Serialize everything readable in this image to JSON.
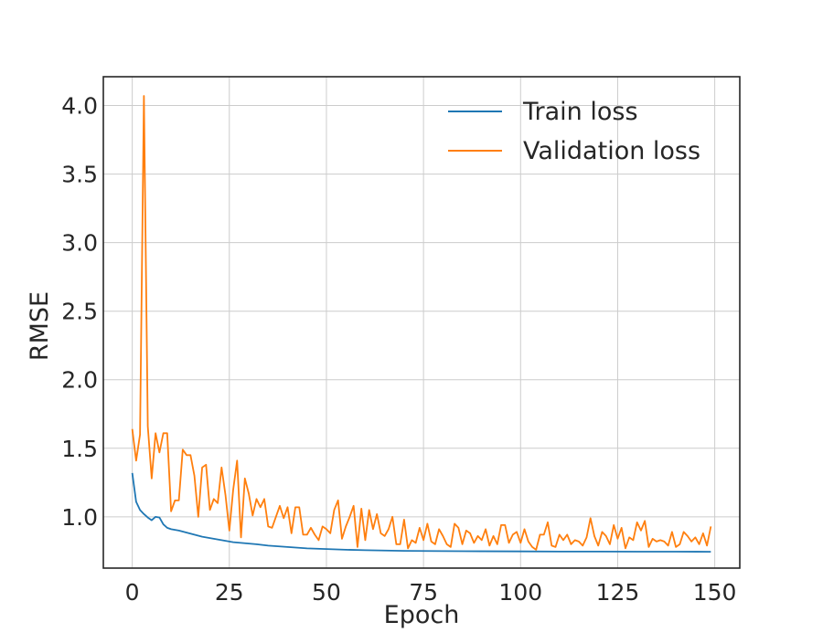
{
  "chart_data": {
    "type": "line",
    "title": "",
    "xlabel": "Epoch",
    "ylabel": "RMSE",
    "xlim": [
      -7.45,
      156.45
    ],
    "ylim": [
      0.626,
      4.21
    ],
    "xticks": [
      0,
      25,
      50,
      75,
      100,
      125,
      150
    ],
    "yticks": [
      1.0,
      1.5,
      2.0,
      2.5,
      3.0,
      3.5,
      4.0
    ],
    "xtick_labels": [
      "0",
      "25",
      "50",
      "75",
      "100",
      "125",
      "150"
    ],
    "ytick_labels": [
      "1.0",
      "1.5",
      "2.0",
      "2.5",
      "3.0",
      "3.5",
      "4.0"
    ],
    "grid": true,
    "legend_position": "top-right",
    "series": [
      {
        "name": "Train loss",
        "color": "#1f77b4",
        "x": [
          0,
          1,
          2,
          3,
          4,
          5,
          6,
          7,
          8,
          9,
          10,
          12,
          14,
          16,
          18,
          20,
          22,
          24,
          26,
          28,
          30,
          32,
          35,
          40,
          45,
          50,
          55,
          60,
          70,
          80,
          90,
          100,
          110,
          120,
          130,
          140,
          149
        ],
        "y": [
          1.32,
          1.11,
          1.05,
          1.02,
          0.995,
          0.975,
          1.0,
          0.995,
          0.945,
          0.92,
          0.91,
          0.9,
          0.885,
          0.87,
          0.855,
          0.845,
          0.835,
          0.825,
          0.815,
          0.81,
          0.805,
          0.8,
          0.79,
          0.78,
          0.77,
          0.765,
          0.76,
          0.757,
          0.752,
          0.75,
          0.749,
          0.748,
          0.747,
          0.747,
          0.746,
          0.746,
          0.745
        ]
      },
      {
        "name": "Validation loss",
        "color": "#ff7f0e",
        "x": [
          0,
          1,
          2,
          3,
          4,
          5,
          6,
          7,
          8,
          9,
          10,
          11,
          12,
          13,
          14,
          15,
          16,
          17,
          18,
          19,
          20,
          21,
          22,
          23,
          24,
          25,
          26,
          27,
          28,
          29,
          30,
          31,
          32,
          33,
          34,
          35,
          36,
          37,
          38,
          39,
          40,
          41,
          42,
          43,
          44,
          45,
          46,
          47,
          48,
          49,
          50,
          51,
          52,
          53,
          54,
          55,
          56,
          57,
          58,
          59,
          60,
          61,
          62,
          63,
          64,
          65,
          66,
          67,
          68,
          69,
          70,
          71,
          72,
          73,
          74,
          75,
          76,
          77,
          78,
          79,
          80,
          81,
          82,
          83,
          84,
          85,
          86,
          87,
          88,
          89,
          90,
          91,
          92,
          93,
          94,
          95,
          96,
          97,
          98,
          99,
          100,
          101,
          102,
          103,
          104,
          105,
          106,
          107,
          108,
          109,
          110,
          111,
          112,
          113,
          114,
          115,
          116,
          117,
          118,
          119,
          120,
          121,
          122,
          123,
          124,
          125,
          126,
          127,
          128,
          129,
          130,
          131,
          132,
          133,
          134,
          135,
          136,
          137,
          138,
          139,
          140,
          141,
          142,
          143,
          144,
          145,
          146,
          147,
          148,
          149
        ],
        "y": [
          1.64,
          1.41,
          1.6,
          4.07,
          1.66,
          1.28,
          1.61,
          1.47,
          1.61,
          1.61,
          1.04,
          1.12,
          1.12,
          1.49,
          1.45,
          1.45,
          1.3,
          1.0,
          1.36,
          1.38,
          1.05,
          1.13,
          1.1,
          1.36,
          1.16,
          0.9,
          1.2,
          1.41,
          0.85,
          1.28,
          1.17,
          1.01,
          1.13,
          1.07,
          1.13,
          0.93,
          0.92,
          1.0,
          1.08,
          0.99,
          1.07,
          0.88,
          1.07,
          1.07,
          0.87,
          0.87,
          0.92,
          0.87,
          0.83,
          0.93,
          0.91,
          0.88,
          1.05,
          1.12,
          0.84,
          0.93,
          1.0,
          1.08,
          0.78,
          1.06,
          0.83,
          1.05,
          0.91,
          1.02,
          0.88,
          0.86,
          0.91,
          1.0,
          0.8,
          0.8,
          0.98,
          0.77,
          0.83,
          0.81,
          0.92,
          0.83,
          0.95,
          0.82,
          0.8,
          0.91,
          0.86,
          0.8,
          0.78,
          0.95,
          0.92,
          0.8,
          0.9,
          0.88,
          0.81,
          0.86,
          0.83,
          0.91,
          0.79,
          0.86,
          0.8,
          0.94,
          0.94,
          0.81,
          0.87,
          0.89,
          0.81,
          0.91,
          0.82,
          0.78,
          0.76,
          0.87,
          0.87,
          0.96,
          0.79,
          0.78,
          0.87,
          0.83,
          0.87,
          0.8,
          0.83,
          0.82,
          0.79,
          0.85,
          0.99,
          0.86,
          0.79,
          0.89,
          0.86,
          0.8,
          0.94,
          0.84,
          0.92,
          0.77,
          0.85,
          0.83,
          0.96,
          0.9,
          0.97,
          0.78,
          0.84,
          0.82,
          0.83,
          0.82,
          0.79,
          0.89,
          0.78,
          0.8,
          0.89,
          0.86,
          0.82,
          0.85,
          0.8,
          0.88,
          0.79,
          0.93
        ]
      }
    ]
  }
}
